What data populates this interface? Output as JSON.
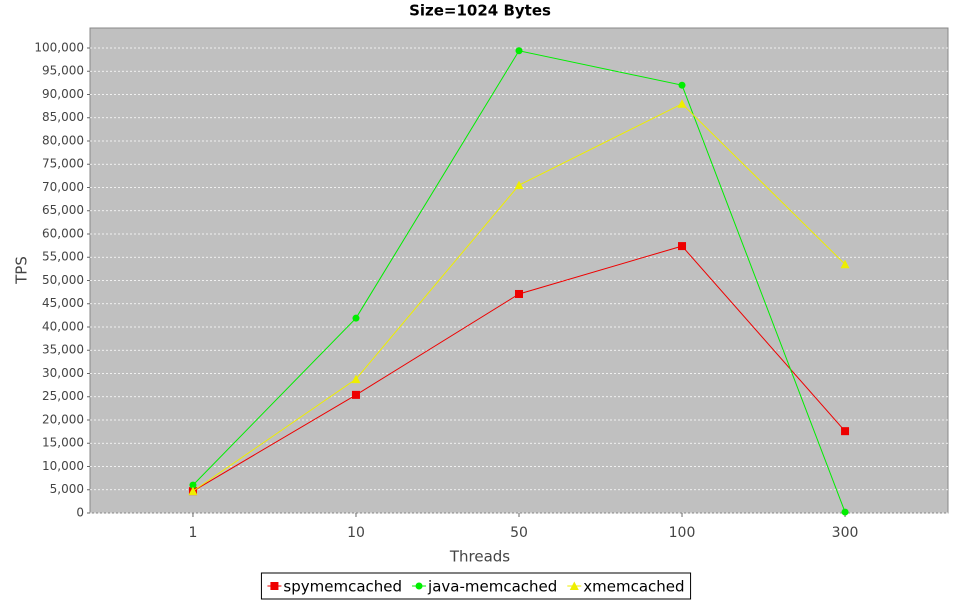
{
  "chart_data": {
    "type": "line",
    "title": "Size=1024 Bytes",
    "x_label": "Threads",
    "y_label": "TPS",
    "categories": [
      "1",
      "10",
      "50",
      "100",
      "300"
    ],
    "series": [
      {
        "name": "spymemcached",
        "color": "#ee0000",
        "marker": "square",
        "values": [
          4700,
          25400,
          47100,
          57400,
          17600
        ]
      },
      {
        "name": "java-memcached",
        "color": "#00ee00",
        "marker": "circle",
        "values": [
          6000,
          41900,
          99400,
          92000,
          200
        ]
      },
      {
        "name": "xmemcached",
        "color": "#eeee00",
        "marker": "triangle",
        "values": [
          4700,
          28800,
          70500,
          88000,
          53500
        ]
      }
    ],
    "ylim": [
      0,
      104300
    ],
    "yticks": [
      0,
      {
        "value": 5000,
        "label": "5,000"
      },
      {
        "value": 10000,
        "label": "10,000"
      },
      {
        "value": 15000,
        "label": "15,000"
      },
      {
        "value": 20000,
        "label": "20,000"
      },
      {
        "value": 25000,
        "label": "25,000"
      },
      {
        "value": 30000,
        "label": "30,000"
      },
      {
        "value": 35000,
        "label": "35,000"
      },
      {
        "value": 40000,
        "label": "40,000"
      },
      {
        "value": 45000,
        "label": "45,000"
      },
      {
        "value": 50000,
        "label": "50,000"
      },
      {
        "value": 55000,
        "label": "55,000"
      },
      {
        "value": 60000,
        "label": "60,000"
      },
      {
        "value": 65000,
        "label": "65,000"
      },
      {
        "value": 70000,
        "label": "70,000"
      },
      {
        "value": 75000,
        "label": "75,000"
      },
      {
        "value": 80000,
        "label": "80,000"
      },
      {
        "value": 85000,
        "label": "85,000"
      },
      {
        "value": 90000,
        "label": "90,000"
      },
      {
        "value": 95000,
        "label": "95,000"
      },
      {
        "value": 100000,
        "label": "100,000"
      }
    ],
    "grid": true,
    "legend": "bottom"
  }
}
